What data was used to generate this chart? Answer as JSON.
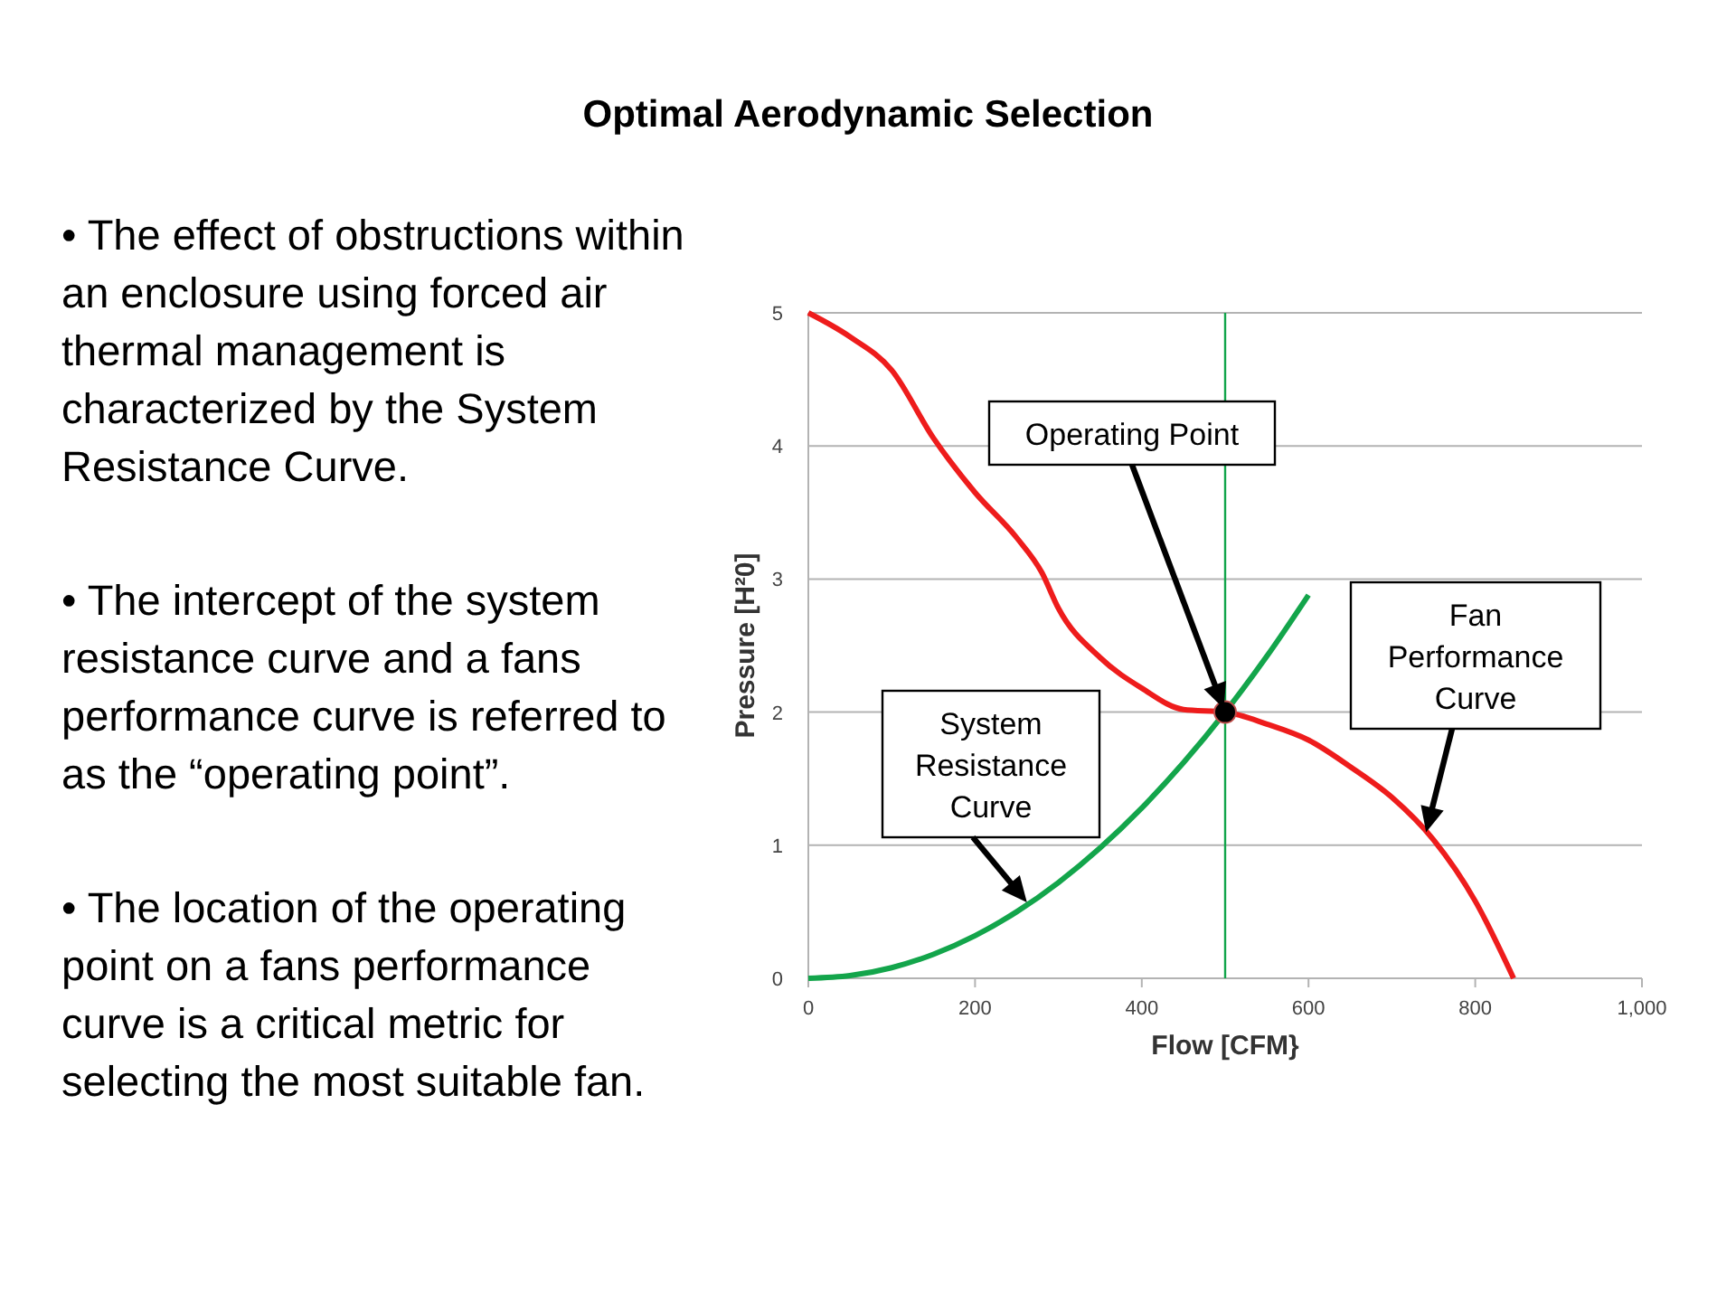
{
  "chart_data": {
    "type": "line",
    "title": "Optimal Aerodynamic Selection",
    "xlabel": "Flow [CFM}",
    "ylabel": "Pressure [H²0]",
    "xlim": [
      0,
      1000
    ],
    "ylim": [
      0,
      5
    ],
    "xticks": [
      0,
      200,
      400,
      600,
      800,
      {
        "value": 1000,
        "label": "1,000"
      }
    ],
    "yticks": [
      0,
      1,
      2,
      3,
      4,
      5
    ],
    "grid": "y",
    "series": [
      {
        "type": "line",
        "color": "#ee1c1c",
        "x": [
          0,
          50,
          100,
          150,
          200,
          250,
          280,
          300,
          350,
          400,
          450,
          500,
          550,
          600,
          650,
          700,
          750,
          800,
          846
        ],
        "values": [
          5,
          4.82,
          4.57,
          4.06,
          3.65,
          3.31,
          3.05,
          2.78,
          2.41,
          2.18,
          2.02,
          2,
          1.91,
          1.79,
          1.59,
          1.36,
          1.04,
          0.58,
          0
        ]
      },
      {
        "type": "line",
        "color": "#13a54b",
        "x": [
          0,
          50,
          100,
          150,
          200,
          250,
          300,
          350,
          400,
          450,
          500,
          550,
          600
        ],
        "values": [
          0,
          0.02,
          0.08,
          0.18,
          0.32,
          0.5,
          0.72,
          0.98,
          1.28,
          1.62,
          2,
          2.42,
          2.88
        ]
      },
      {
        "type": "scatter",
        "marker": "circle",
        "color": "#000000",
        "x": [
          500
        ],
        "values": [
          2
        ]
      }
    ],
    "ref_lines": [
      {
        "axis": "x",
        "value": 500,
        "color": "#13a54b"
      }
    ],
    "annotations": [
      {
        "text": "Operating Point",
        "x": 500,
        "y": 2
      },
      {
        "text": "System Resistance Curve",
        "x": 265,
        "y": 0.55
      },
      {
        "text": "Fan Performance Curve",
        "x": 740,
        "y": 1.07
      },
      "• The effect of obstructions within an enclosure using forced air thermal management is characterized by the System Resistance Curve.",
      "• The intercept of the system resistance curve and a fans performance curve is referred to as the “operating point”.",
      "• The location of the operating point on a fans performance curve is a critical metric for selecting the most suitable fan."
    ]
  }
}
